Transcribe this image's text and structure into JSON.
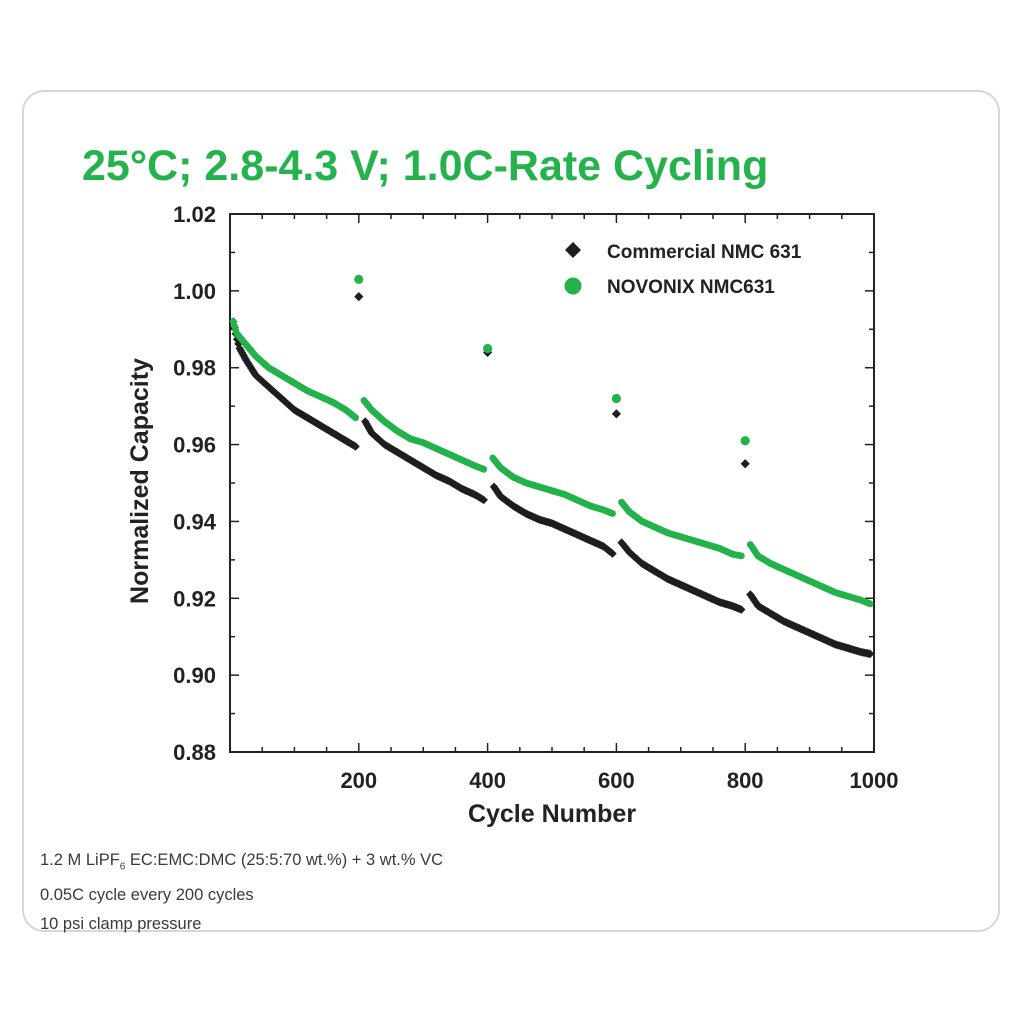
{
  "chart_data": {
    "type": "scatter",
    "title": "25°C; 2.8-4.3 V; 1.0C-Rate Cycling",
    "xlabel": "Cycle Number",
    "ylabel": "Normalized Capacity",
    "xlim": [
      0,
      1000
    ],
    "ylim": [
      0.88,
      1.02
    ],
    "xticks": [
      "200",
      "400",
      "600",
      "800",
      "1000"
    ],
    "xtick_values": [
      200,
      400,
      600,
      800,
      1000
    ],
    "yticks": [
      "0.88",
      "0.90",
      "0.92",
      "0.94",
      "0.96",
      "0.98",
      "1.00",
      "1.02"
    ],
    "ytick_values": [
      0.88,
      0.9,
      0.92,
      0.94,
      0.96,
      0.98,
      1.0,
      1.02
    ],
    "legend_position": "top-right",
    "series": [
      {
        "name": "Commercial NMC 631",
        "marker": "diamond",
        "color": "#1e1e1e",
        "segments": [
          [
            [
              5,
              0.992
            ],
            [
              10,
              0.988
            ],
            [
              15,
              0.985
            ],
            [
              25,
              0.982
            ],
            [
              40,
              0.978
            ],
            [
              60,
              0.975
            ],
            [
              80,
              0.972
            ],
            [
              100,
              0.969
            ],
            [
              120,
              0.967
            ],
            [
              140,
              0.965
            ],
            [
              160,
              0.963
            ],
            [
              180,
              0.961
            ],
            [
              195,
              0.9595
            ]
          ],
          [
            [
              210,
              0.966
            ],
            [
              220,
              0.963
            ],
            [
              240,
              0.96
            ],
            [
              260,
              0.958
            ],
            [
              280,
              0.956
            ],
            [
              300,
              0.954
            ],
            [
              320,
              0.952
            ],
            [
              340,
              0.9505
            ],
            [
              360,
              0.9485
            ],
            [
              380,
              0.947
            ],
            [
              395,
              0.9455
            ]
          ],
          [
            [
              410,
              0.949
            ],
            [
              420,
              0.9465
            ],
            [
              440,
              0.944
            ],
            [
              460,
              0.942
            ],
            [
              480,
              0.9405
            ],
            [
              500,
              0.9395
            ],
            [
              520,
              0.938
            ],
            [
              540,
              0.9365
            ],
            [
              560,
              0.935
            ],
            [
              580,
              0.9335
            ],
            [
              595,
              0.9315
            ]
          ],
          [
            [
              608,
              0.9345
            ],
            [
              620,
              0.932
            ],
            [
              640,
              0.929
            ],
            [
              660,
              0.927
            ],
            [
              680,
              0.925
            ],
            [
              700,
              0.9235
            ],
            [
              720,
              0.922
            ],
            [
              740,
              0.9205
            ],
            [
              760,
              0.919
            ],
            [
              780,
              0.918
            ],
            [
              795,
              0.917
            ]
          ],
          [
            [
              808,
              0.921
            ],
            [
              820,
              0.918
            ],
            [
              840,
              0.916
            ],
            [
              860,
              0.914
            ],
            [
              880,
              0.9125
            ],
            [
              900,
              0.911
            ],
            [
              920,
              0.9095
            ],
            [
              940,
              0.908
            ],
            [
              960,
              0.907
            ],
            [
              980,
              0.906
            ],
            [
              995,
              0.9055
            ]
          ]
        ],
        "checkups": [
          [
            200,
            0.9985
          ],
          [
            400,
            0.984
          ],
          [
            600,
            0.968
          ],
          [
            800,
            0.955
          ]
        ]
      },
      {
        "name": "NOVONIX NMC631",
        "marker": "circle",
        "color": "#23b24b",
        "segments": [
          [
            [
              5,
              0.992
            ],
            [
              10,
              0.989
            ],
            [
              20,
              0.987
            ],
            [
              40,
              0.983
            ],
            [
              60,
              0.98
            ],
            [
              80,
              0.978
            ],
            [
              100,
              0.976
            ],
            [
              120,
              0.974
            ],
            [
              140,
              0.9725
            ],
            [
              160,
              0.971
            ],
            [
              180,
              0.969
            ],
            [
              195,
              0.967
            ]
          ],
          [
            [
              208,
              0.9715
            ],
            [
              220,
              0.969
            ],
            [
              240,
              0.966
            ],
            [
              260,
              0.9635
            ],
            [
              280,
              0.9615
            ],
            [
              300,
              0.9605
            ],
            [
              320,
              0.959
            ],
            [
              340,
              0.9575
            ],
            [
              360,
              0.956
            ],
            [
              380,
              0.9545
            ],
            [
              395,
              0.9535
            ]
          ],
          [
            [
              408,
              0.9565
            ],
            [
              420,
              0.954
            ],
            [
              440,
              0.9515
            ],
            [
              460,
              0.95
            ],
            [
              480,
              0.949
            ],
            [
              500,
              0.948
            ],
            [
              520,
              0.947
            ],
            [
              540,
              0.9455
            ],
            [
              560,
              0.944
            ],
            [
              580,
              0.943
            ],
            [
              595,
              0.942
            ]
          ],
          [
            [
              608,
              0.945
            ],
            [
              620,
              0.9425
            ],
            [
              640,
              0.94
            ],
            [
              660,
              0.9385
            ],
            [
              680,
              0.937
            ],
            [
              700,
              0.936
            ],
            [
              720,
              0.935
            ],
            [
              740,
              0.934
            ],
            [
              760,
              0.933
            ],
            [
              780,
              0.9315
            ],
            [
              795,
              0.931
            ]
          ],
          [
            [
              808,
              0.934
            ],
            [
              820,
              0.931
            ],
            [
              840,
              0.929
            ],
            [
              860,
              0.9275
            ],
            [
              880,
              0.926
            ],
            [
              900,
              0.9245
            ],
            [
              920,
              0.923
            ],
            [
              940,
              0.9215
            ],
            [
              960,
              0.9205
            ],
            [
              980,
              0.9195
            ],
            [
              995,
              0.9185
            ]
          ]
        ],
        "checkups": [
          [
            200,
            1.003
          ],
          [
            400,
            0.985
          ],
          [
            600,
            0.972
          ],
          [
            800,
            0.961
          ]
        ]
      }
    ]
  },
  "notes": {
    "line1_pre": "1.2 M LiPF",
    "line1_sub": "6",
    "line1_post": " EC:EMC:DMC (25:5:70 wt.%) + 3 wt.% VC",
    "line2": "0.05C cycle every 200 cycles",
    "line3": "10 psi clamp pressure"
  }
}
